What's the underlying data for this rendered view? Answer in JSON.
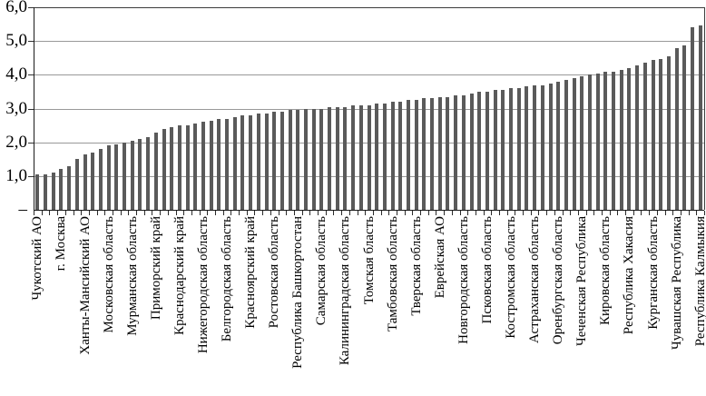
{
  "chart_data": {
    "type": "bar",
    "title": "",
    "xlabel": "",
    "ylabel": "",
    "ylim": [
      0,
      6
    ],
    "grid": true,
    "legend": false,
    "bar_color": "#5a5a5a",
    "y_ticks": [
      {
        "value": 6,
        "label": "6,0"
      },
      {
        "value": 5,
        "label": "5,0"
      },
      {
        "value": 4,
        "label": "4,0"
      },
      {
        "value": 3,
        "label": "3,0"
      },
      {
        "value": 2,
        "label": "2,0"
      },
      {
        "value": 1,
        "label": "1,0"
      },
      {
        "value": 0,
        "label": "–"
      }
    ],
    "label_interval": 3,
    "categories": [
      "Чукотский АО",
      "г. Москва",
      "Ханты-Мансийский АО",
      "Московская область",
      "Мурманская область",
      "Приморский край",
      "Краснодарский край",
      "Нижегородская область",
      "Белгородская область",
      "Красноярский край",
      "Ростовская область",
      "Республика Башкортостан",
      "Самарская область",
      "Калининградская область",
      "Томская бласть",
      "Тамбовская область",
      "Тверская область",
      "Еврейская АО",
      "Новгородская область",
      "Псковская область",
      "Костромская область",
      "Астраханская область",
      "Оренбургская область",
      "Чеченская Республика",
      "Кировская область",
      "Республика Хакасия",
      "Курганская область",
      "Чувашская Республика",
      "Республика Калмыкия"
    ],
    "values": [
      1.05,
      1.05,
      1.1,
      1.2,
      1.3,
      1.5,
      1.65,
      1.7,
      1.8,
      1.9,
      1.95,
      2.0,
      2.05,
      2.1,
      2.15,
      2.3,
      2.4,
      2.45,
      2.5,
      2.5,
      2.55,
      2.6,
      2.65,
      2.7,
      2.7,
      2.75,
      2.8,
      2.8,
      2.85,
      2.85,
      2.9,
      2.9,
      2.95,
      2.95,
      3.0,
      3.0,
      3.0,
      3.05,
      3.05,
      3.05,
      3.1,
      3.1,
      3.1,
      3.15,
      3.15,
      3.2,
      3.2,
      3.25,
      3.25,
      3.3,
      3.3,
      3.35,
      3.35,
      3.4,
      3.4,
      3.45,
      3.5,
      3.5,
      3.55,
      3.55,
      3.6,
      3.6,
      3.65,
      3.7,
      3.7,
      3.75,
      3.8,
      3.85,
      3.9,
      3.95,
      4.0,
      4.05,
      4.1,
      4.1,
      4.15,
      4.2,
      4.28,
      4.35,
      4.43,
      4.46,
      4.55,
      4.78,
      4.88,
      5.42,
      5.45
    ]
  }
}
